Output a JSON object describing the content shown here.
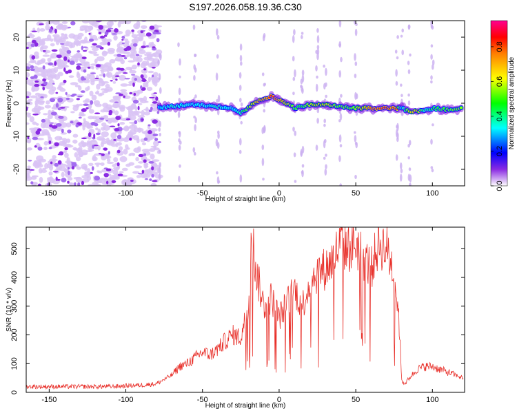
{
  "title": "S197.2026.058.19.36.C30",
  "chart_data": [
    {
      "type": "heatmap",
      "xlabel": "Height of straight line (km)",
      "ylabel": "Frequency (Hz)",
      "xlim": [
        -165,
        121
      ],
      "ylim": [
        -25,
        25
      ],
      "xticks": [
        -150,
        -100,
        -50,
        0,
        50,
        100
      ],
      "yticks": [
        -20,
        -10,
        0,
        10,
        20
      ],
      "colorbar": {
        "label": "Normalized spectral amplitude",
        "range": [
          0,
          0.95
        ],
        "ticks": [
          0.0,
          0.2,
          0.4,
          0.6,
          0.8
        ]
      },
      "noise_region_x": [
        -165,
        -78
      ],
      "ridge": {
        "x": [
          -78,
          -70,
          -60,
          -50,
          -40,
          -30,
          -25,
          -20,
          -15,
          -10,
          -5,
          0,
          5,
          10,
          15,
          20,
          30,
          40,
          50,
          60,
          70,
          77,
          80,
          85,
          90,
          95,
          100,
          110,
          120
        ],
        "freq": [
          -1.5,
          -1,
          -0.5,
          -0.5,
          -1,
          -1.5,
          -3,
          -1.5,
          0.5,
          1,
          2,
          1,
          0,
          -1.5,
          -1,
          -0.5,
          -0.5,
          -1,
          -1.5,
          -1.5,
          -1.5,
          -1.5,
          -1.5,
          -2.5,
          -2.5,
          -2,
          -1.5,
          -2,
          -1.5
        ],
        "amplitude": [
          0.3,
          0.4,
          0.35,
          0.35,
          0.4,
          0.3,
          0.45,
          0.6,
          0.75,
          0.8,
          0.9,
          0.85,
          0.7,
          0.55,
          0.5,
          0.65,
          0.7,
          0.55,
          0.6,
          0.85,
          0.9,
          0.85,
          0.3,
          0.7,
          0.75,
          0.4,
          0.5,
          0.55,
          0.6
        ]
      },
      "vertical_streaks_x": [
        -78,
        -65,
        -55,
        -40,
        -25,
        -10,
        10,
        15,
        25,
        30,
        40,
        50,
        77,
        80,
        85,
        100
      ]
    },
    {
      "type": "line",
      "xlabel": "Height of straight line (km)",
      "ylabel": "SNR (10 * v/v)",
      "xlim": [
        -165,
        121
      ],
      "ylim": [
        0,
        575
      ],
      "xticks": [
        -150,
        -100,
        -50,
        0,
        50,
        100
      ],
      "yticks": [
        0,
        100,
        200,
        300,
        400,
        500
      ],
      "color": "#e8302a",
      "series": [
        {
          "name": "SNR",
          "x": [
            -165,
            -150,
            -130,
            -110,
            -90,
            -80,
            -75,
            -70,
            -65,
            -60,
            -55,
            -50,
            -45,
            -40,
            -35,
            -30,
            -25,
            -20,
            -18,
            -15,
            -10,
            -5,
            0,
            5,
            10,
            15,
            20,
            25,
            30,
            35,
            40,
            45,
            50,
            55,
            60,
            65,
            70,
            75,
            78,
            80,
            82,
            85,
            90,
            95,
            100,
            105,
            110,
            115,
            120
          ],
          "y": [
            20,
            20,
            20,
            20,
            25,
            30,
            45,
            60,
            90,
            100,
            120,
            140,
            130,
            150,
            180,
            200,
            190,
            300,
            560,
            420,
            300,
            330,
            260,
            310,
            360,
            300,
            380,
            420,
            430,
            460,
            520,
            500,
            520,
            470,
            430,
            520,
            500,
            420,
            270,
            40,
            30,
            50,
            80,
            90,
            90,
            80,
            70,
            60,
            50
          ]
        }
      ]
    }
  ]
}
